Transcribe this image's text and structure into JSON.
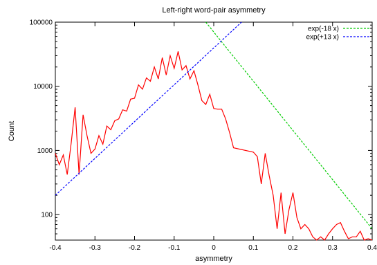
{
  "chart_data": {
    "type": "line",
    "title": "Left-right word-pair asymmetry",
    "xlabel": "asymmetry",
    "ylabel": "Count",
    "xlim": [
      -0.4,
      0.4
    ],
    "ylim": [
      40,
      100000
    ],
    "y_scale": "log",
    "grid": false,
    "legend_position": "top-right",
    "x_ticks": [
      -0.4,
      -0.3,
      -0.2,
      -0.1,
      0,
      0.1,
      0.2,
      0.3,
      0.4
    ],
    "x_tick_labels": [
      "-0.4",
      "-0.3",
      "-0.2",
      "-0.1",
      "0",
      "0.1",
      "0.2",
      "0.3",
      "0.4"
    ],
    "y_ticks": [
      100,
      1000,
      10000,
      100000
    ],
    "y_tick_labels": [
      "100",
      "1000",
      "10000",
      "100000"
    ],
    "series": [
      {
        "name": "",
        "color": "#ff0000",
        "kind": "data",
        "x": [
          -0.4,
          -0.39,
          -0.38,
          -0.37,
          -0.36,
          -0.35,
          -0.34,
          -0.33,
          -0.32,
          -0.31,
          -0.3,
          -0.29,
          -0.28,
          -0.27,
          -0.26,
          -0.25,
          -0.24,
          -0.23,
          -0.22,
          -0.21,
          -0.2,
          -0.19,
          -0.18,
          -0.17,
          -0.16,
          -0.15,
          -0.14,
          -0.13,
          -0.12,
          -0.11,
          -0.1,
          -0.09,
          -0.08,
          -0.07,
          -0.06,
          -0.05,
          -0.04,
          -0.03,
          -0.02,
          -0.01,
          0,
          0.01,
          0.02,
          0.03,
          0.04,
          0.05,
          0.1,
          0.11,
          0.12,
          0.13,
          0.14,
          0.15,
          0.16,
          0.17,
          0.18,
          0.19,
          0.2,
          0.21,
          0.22,
          0.23,
          0.24,
          0.25,
          0.26,
          0.27,
          0.28,
          0.29,
          0.3,
          0.31,
          0.32,
          0.33,
          0.34,
          0.35,
          0.36,
          0.37,
          0.38,
          0.39,
          0.4
        ],
        "y": [
          900,
          600,
          850,
          420,
          1300,
          4700,
          420,
          3600,
          1700,
          900,
          1050,
          1700,
          1250,
          2400,
          2100,
          2900,
          3100,
          4300,
          4100,
          6300,
          6500,
          10500,
          9000,
          13500,
          12000,
          20000,
          13000,
          28000,
          15000,
          30000,
          19000,
          35000,
          18000,
          21000,
          13000,
          17500,
          10500,
          6000,
          5200,
          7500,
          4500,
          4400,
          4400,
          3100,
          1900,
          1100,
          940,
          800,
          300,
          900,
          400,
          200,
          60,
          220,
          50,
          120,
          220,
          90,
          60,
          70,
          60,
          45,
          40,
          45,
          40,
          50,
          60,
          70,
          75,
          55,
          42,
          45,
          45,
          55,
          40,
          42,
          40
        ]
      },
      {
        "name": "exp(-18 x)",
        "color": "#00cc00",
        "kind": "fit",
        "formula": "A*exp(-18*x)",
        "x": [
          -0.02,
          0.4
        ],
        "y": [
          100000,
          60
        ]
      },
      {
        "name": "exp(+13 x)",
        "color": "#0000ff",
        "kind": "fit",
        "formula": "B*exp(13*x)",
        "x": [
          -0.4,
          0.07
        ],
        "y": [
          200,
          100000
        ]
      }
    ]
  }
}
